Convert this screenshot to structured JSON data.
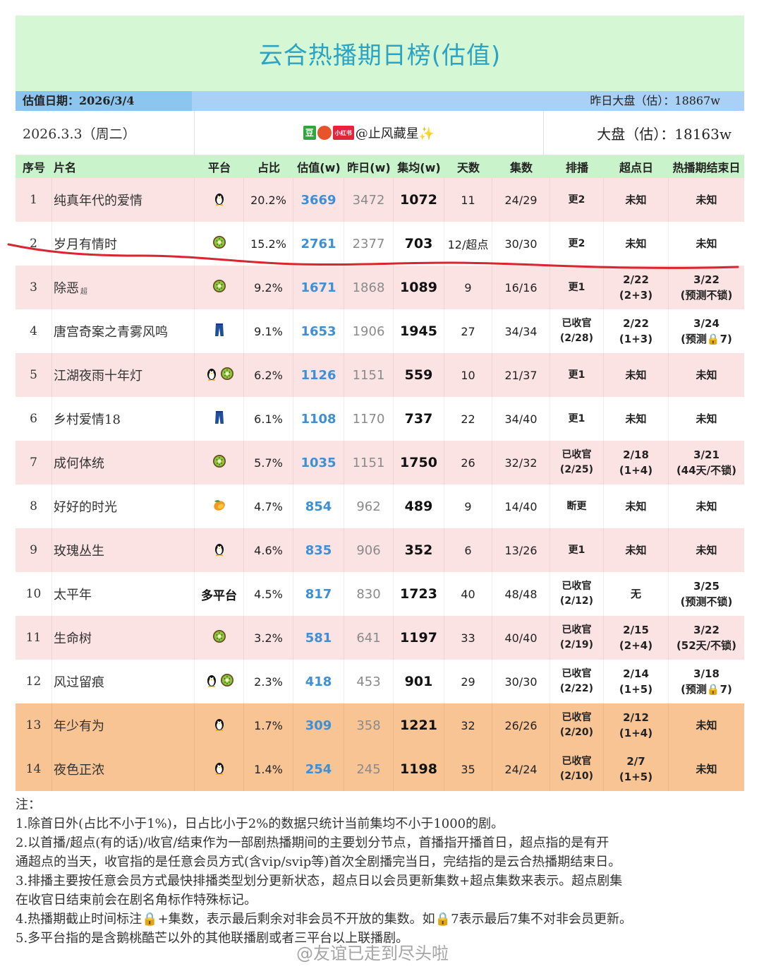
{
  "title": "云合热播期日榜(估值)",
  "valuation_date": "估值日期：2026/3/4",
  "yesterday_market": "昨日大盘（估）：18867w",
  "date_line": "2026.3.3（周二）",
  "source_badges": [
    "豆",
    "",
    "小红书"
  ],
  "source_handle": "@止风藏星✨",
  "market": "大盘（估）：18163w",
  "headers": [
    "序号",
    "片名",
    "平台",
    "占比",
    "估值(w)",
    "昨日(w)",
    "集均(w)",
    "天数",
    "集数",
    "排播",
    "超点日",
    "热播期结束日"
  ],
  "rows": [
    {
      "no": "1",
      "name": "纯真年代的爱情",
      "tag": "",
      "platform": [
        "penguin"
      ],
      "pct": "20.2%",
      "est": "3669",
      "yest": "3472",
      "avg": "1072",
      "days": "11",
      "eps": "24/29",
      "sched": [
        "更2"
      ],
      "peak": [
        "未知"
      ],
      "end": [
        "未知"
      ],
      "bg": "pink"
    },
    {
      "no": "2",
      "name": "岁月有情时",
      "tag": "",
      "platform": [
        "kiwi"
      ],
      "pct": "15.2%",
      "est": "2761",
      "yest": "2377",
      "avg": "703",
      "days": "12/超点",
      "eps": "30/30",
      "sched": [
        "更2"
      ],
      "peak": [
        "未知"
      ],
      "end": [
        "未知"
      ],
      "bg": "white"
    },
    {
      "no": "3",
      "name": "除恶",
      "tag": "超",
      "platform": [
        "kiwi"
      ],
      "pct": "9.2%",
      "est": "1671",
      "yest": "1868",
      "avg": "1089",
      "days": "9",
      "eps": "16/16",
      "sched": [
        "更1"
      ],
      "peak": [
        "2/22",
        "(2+3)"
      ],
      "end": [
        "3/22",
        "(预测不锁)"
      ],
      "bg": "pink"
    },
    {
      "no": "4",
      "name": "唐宫奇案之青雾风鸣",
      "tag": "",
      "platform": [
        "jeans"
      ],
      "pct": "9.1%",
      "est": "1653",
      "yest": "1906",
      "avg": "1945",
      "days": "27",
      "eps": "34/34",
      "sched": [
        "已收官",
        "(2/28)"
      ],
      "peak": [
        "2/22",
        "(1+3)"
      ],
      "end": [
        "3/24",
        "(预测🔒7)"
      ],
      "bg": "white"
    },
    {
      "no": "5",
      "name": "江湖夜雨十年灯",
      "tag": "",
      "platform": [
        "penguin",
        "kiwi"
      ],
      "pct": "6.2%",
      "est": "1126",
      "yest": "1151",
      "avg": "559",
      "days": "10",
      "eps": "21/37",
      "sched": [
        "更1"
      ],
      "peak": [
        "未知"
      ],
      "end": [
        "未知"
      ],
      "bg": "pink"
    },
    {
      "no": "6",
      "name": "乡村爱情18",
      "tag": "",
      "platform": [
        "jeans"
      ],
      "pct": "6.1%",
      "est": "1108",
      "yest": "1170",
      "avg": "737",
      "days": "22",
      "eps": "34/40",
      "sched": [
        "更1"
      ],
      "peak": [
        "未知"
      ],
      "end": [
        "未知"
      ],
      "bg": "white"
    },
    {
      "no": "7",
      "name": "成何体统",
      "tag": "",
      "platform": [
        "kiwi"
      ],
      "pct": "5.7%",
      "est": "1035",
      "yest": "1151",
      "avg": "1750",
      "days": "26",
      "eps": "32/32",
      "sched": [
        "已收官",
        "(2/25)"
      ],
      "peak": [
        "2/18",
        "(1+4)"
      ],
      "end": [
        "3/21",
        "(44天/不锁)"
      ],
      "bg": "pink"
    },
    {
      "no": "8",
      "name": "好好的时光",
      "tag": "",
      "platform": [
        "mango"
      ],
      "pct": "4.7%",
      "est": "854",
      "yest": "962",
      "avg": "489",
      "days": "9",
      "eps": "14/40",
      "sched": [
        "断更"
      ],
      "peak": [
        "未知"
      ],
      "end": [
        "未知"
      ],
      "bg": "white"
    },
    {
      "no": "9",
      "name": "玫瑰丛生",
      "tag": "",
      "platform": [
        "penguin"
      ],
      "pct": "4.6%",
      "est": "835",
      "yest": "906",
      "avg": "352",
      "days": "6",
      "eps": "13/26",
      "sched": [
        "更1"
      ],
      "peak": [
        "未知"
      ],
      "end": [
        "未知"
      ],
      "bg": "pink"
    },
    {
      "no": "10",
      "name": "太平年",
      "tag": "",
      "platform": [],
      "platform_text": "多平台",
      "pct": "4.5%",
      "est": "817",
      "yest": "830",
      "avg": "1723",
      "days": "40",
      "eps": "48/48",
      "sched": [
        "已收官",
        "(2/12)"
      ],
      "peak": [
        "无"
      ],
      "end": [
        "3/25",
        "(预测不锁)"
      ],
      "bg": "white"
    },
    {
      "no": "11",
      "name": "生命树",
      "tag": "",
      "platform": [
        "kiwi"
      ],
      "pct": "3.2%",
      "est": "581",
      "yest": "641",
      "avg": "1197",
      "days": "33",
      "eps": "40/40",
      "sched": [
        "已收官",
        "(2/19)"
      ],
      "peak": [
        "2/15",
        "(2+4)"
      ],
      "end": [
        "3/22",
        "(52天/不锁)"
      ],
      "bg": "pink"
    },
    {
      "no": "12",
      "name": "风过留痕",
      "tag": "",
      "platform": [
        "penguin",
        "kiwi"
      ],
      "pct": "2.3%",
      "est": "418",
      "yest": "453",
      "avg": "901",
      "days": "29",
      "eps": "30/30",
      "sched": [
        "已收官",
        "(2/22)"
      ],
      "peak": [
        "2/14",
        "(1+5)"
      ],
      "end": [
        "3/18",
        "(预测🔒7)"
      ],
      "bg": "white"
    },
    {
      "no": "13",
      "name": "年少有为",
      "tag": "",
      "platform": [
        "penguin"
      ],
      "pct": "1.7%",
      "est": "309",
      "yest": "358",
      "avg": "1221",
      "days": "32",
      "eps": "26/26",
      "sched": [
        "已收官",
        "(2/20)"
      ],
      "peak": [
        "2/12",
        "(1+4)"
      ],
      "end": [
        "未知"
      ],
      "bg": "orange"
    },
    {
      "no": "14",
      "name": "夜色正浓",
      "tag": "",
      "platform": [
        "penguin"
      ],
      "pct": "1.4%",
      "est": "254",
      "yest": "245",
      "avg": "1198",
      "days": "35",
      "eps": "24/24",
      "sched": [
        "已收官",
        "(2/10)"
      ],
      "peak": [
        "2/7",
        "(1+5)"
      ],
      "end": [
        "未知"
      ],
      "bg": "orange"
    }
  ],
  "notes": [
    "注：",
    "1.除首日外(占比不小于1%)，日占比小于2%的数据只统计当前集均不小于1000的剧。",
    "2.以首播/超点(有的话)/收官/结束作为一部剧热播期间的主要划分节点，首播指开播首日，超点指的是有开",
    "通超点的当天，收官指的是任意会员方式(含vip/svip等)首次全剧播完当日，完结指的是云合热播期结束日。",
    "3.排播主要按任意会员方式最快排播类型划分更新状态，超点日以会员更新集数+超点集数来表示。超点剧集",
    "在收官日结束前会在剧名角标作特殊标记。",
    "4.热播期截止时间标注🔒+集数，表示最后剩余对非会员不开放的集数。如🔒7表示最后7集不对非会员更新。",
    "5.多平台指的是含鹅桃酷芒以外的其他联播剧或者三平台以上联播剧。"
  ],
  "watermark": "@友谊已走到尽头啦",
  "colors": {
    "title": "#2aa3c4",
    "title_bg": "#d5f7d4",
    "pink": "#fbe3e3",
    "orange": "#f8c494",
    "estimate": "#3d8fd6",
    "annotation_line": "#d8252f"
  }
}
